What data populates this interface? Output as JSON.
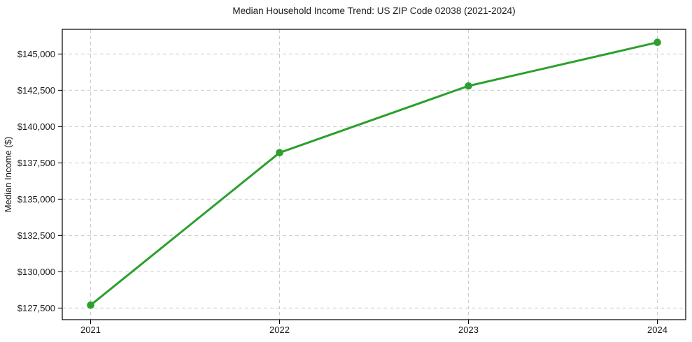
{
  "chart_data": {
    "type": "line",
    "title": "Median Household Income Trend: US ZIP Code 02038 (2021-2024)",
    "xlabel": "",
    "ylabel": "Median Income ($)",
    "x": [
      2021,
      2022,
      2023,
      2024
    ],
    "x_tick_labels": [
      "2021",
      "2022",
      "2023",
      "2024"
    ],
    "series": [
      {
        "name": "Median Household Income",
        "values": [
          127700,
          138200,
          142800,
          145800
        ]
      }
    ],
    "y_ticks": [
      {
        "value": 127500,
        "label": "$127,500"
      },
      {
        "value": 130000,
        "label": "$130,000"
      },
      {
        "value": 132500,
        "label": "$132,500"
      },
      {
        "value": 135000,
        "label": "$135,000"
      },
      {
        "value": 137500,
        "label": "$137,500"
      },
      {
        "value": 140000,
        "label": "$140,000"
      },
      {
        "value": 142500,
        "label": "$142,500"
      },
      {
        "value": 145000,
        "label": "$145,000"
      }
    ],
    "xlim": [
      2020.85,
      2024.15
    ],
    "ylim": [
      126700,
      146700
    ],
    "grid": true,
    "grid_style": "dashed",
    "legend": "none",
    "marker": "circle",
    "colors": {
      "line": "#2ca02c",
      "marker": "#2ca02c",
      "grid": "#cccccc",
      "axis_border": "#000000",
      "text": "#1a1a1a",
      "background": "#ffffff"
    }
  }
}
